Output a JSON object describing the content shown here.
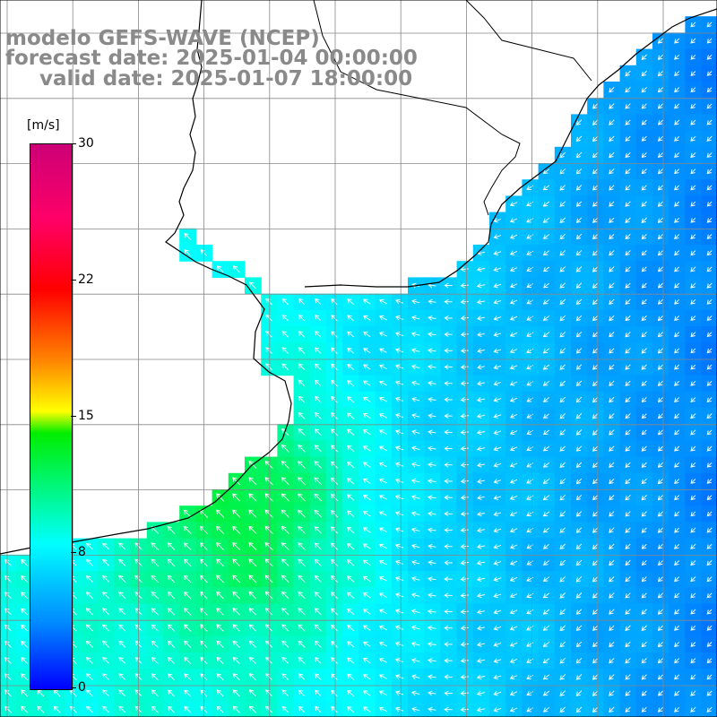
{
  "header": {
    "line1": "modelo GEFS-WAVE (NCEP)",
    "line2": "forecast date: 2025-01-04 00:00:00",
    "line3": "valid date: 2025-01-07 18:00:00"
  },
  "colorbar": {
    "unit": "[m/s]",
    "ticks": [
      "30",
      "22",
      "15",
      "8",
      "0"
    ],
    "tick_values": [
      30,
      22,
      15,
      8,
      0
    ],
    "min": 0,
    "max": 30,
    "colors": [
      "#0000ff",
      "#00ffff",
      "#00ee00",
      "#ffff00",
      "#ff0000",
      "#cc0077"
    ]
  },
  "map": {
    "variable": "wind speed and direction",
    "palette": {
      "land": "#ffffff",
      "coast": "#000000",
      "grid": "#888888"
    }
  }
}
